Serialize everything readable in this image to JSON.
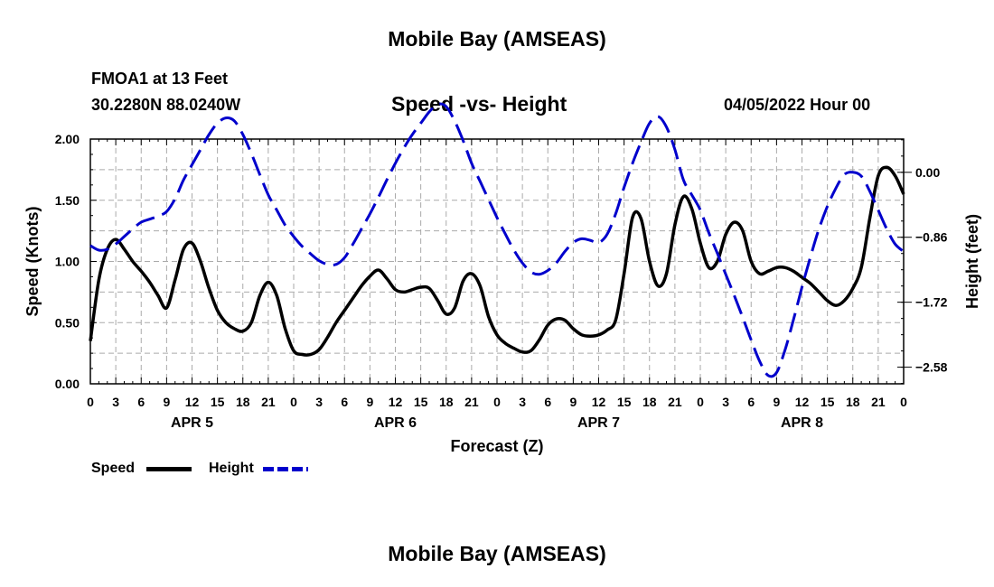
{
  "header": {
    "title": "Mobile Bay (AMSEAS)",
    "station": "FMOA1 at 13 Feet",
    "coords": "30.2280N  88.0240W",
    "subtitle": "Speed -vs- Height",
    "datetime": "04/05/2022 Hour 00"
  },
  "footer": {
    "title": "Mobile Bay (AMSEAS)"
  },
  "legend": {
    "speed_label": "Speed",
    "height_label": "Height",
    "speed_color": "#000000",
    "height_color": "#0000cc"
  },
  "chart_data": {
    "type": "line",
    "xlabel": "Forecast (Z)",
    "ylabel_left": "Speed (Knots)",
    "ylabel_right": "Height (feet)",
    "x_range_hours": [
      0,
      96
    ],
    "x_tick_hours": [
      0,
      3,
      6,
      9,
      12,
      15,
      18,
      21,
      24,
      27,
      30,
      33,
      36,
      39,
      42,
      45,
      48,
      51,
      54,
      57,
      60,
      63,
      66,
      69,
      72,
      75,
      78,
      81,
      84,
      87,
      90,
      93,
      96
    ],
    "x_tick_labels": [
      "0",
      "3",
      "6",
      "9",
      "12",
      "15",
      "18",
      "21",
      "0",
      "3",
      "6",
      "9",
      "12",
      "15",
      "18",
      "21",
      "0",
      "3",
      "6",
      "9",
      "12",
      "15",
      "18",
      "21",
      "0",
      "3",
      "6",
      "9",
      "12",
      "15",
      "18",
      "21",
      "0"
    ],
    "day_labels": [
      {
        "label": "APR 5",
        "hour": 12
      },
      {
        "label": "APR 6",
        "hour": 36
      },
      {
        "label": "APR 7",
        "hour": 60
      },
      {
        "label": "APR 8",
        "hour": 84
      }
    ],
    "left_axis": {
      "range": [
        0,
        2.0
      ],
      "ticks": [
        "0.00",
        "0.50",
        "1.00",
        "1.50",
        "2.00"
      ]
    },
    "right_axis": {
      "range": [
        -2.8,
        0.44
      ],
      "tick_values": [
        0.0,
        -0.86,
        -1.72,
        -2.58
      ],
      "ticks": [
        "0.00",
        "−0.86",
        "−1.72",
        "−2.58"
      ]
    },
    "series": [
      {
        "name": "Speed",
        "axis": "left",
        "color": "#000000",
        "dash": "solid",
        "points": [
          [
            0,
            0.35
          ],
          [
            1,
            0.85
          ],
          [
            2,
            1.1
          ],
          [
            3,
            1.18
          ],
          [
            4,
            1.1
          ],
          [
            5,
            1.0
          ],
          [
            6,
            0.92
          ],
          [
            7,
            0.83
          ],
          [
            8,
            0.72
          ],
          [
            9,
            0.62
          ],
          [
            10,
            0.85
          ],
          [
            11,
            1.1
          ],
          [
            12,
            1.15
          ],
          [
            13,
            1.0
          ],
          [
            14,
            0.78
          ],
          [
            15,
            0.6
          ],
          [
            16,
            0.5
          ],
          [
            17,
            0.45
          ],
          [
            18,
            0.43
          ],
          [
            19,
            0.5
          ],
          [
            20,
            0.72
          ],
          [
            21,
            0.83
          ],
          [
            22,
            0.72
          ],
          [
            23,
            0.45
          ],
          [
            24,
            0.27
          ],
          [
            25,
            0.24
          ],
          [
            26,
            0.24
          ],
          [
            27,
            0.28
          ],
          [
            28,
            0.38
          ],
          [
            29,
            0.5
          ],
          [
            30,
            0.6
          ],
          [
            31,
            0.7
          ],
          [
            32,
            0.8
          ],
          [
            33,
            0.88
          ],
          [
            34,
            0.93
          ],
          [
            35,
            0.86
          ],
          [
            36,
            0.77
          ],
          [
            37,
            0.75
          ],
          [
            38,
            0.77
          ],
          [
            39,
            0.79
          ],
          [
            40,
            0.78
          ],
          [
            41,
            0.68
          ],
          [
            42,
            0.57
          ],
          [
            43,
            0.62
          ],
          [
            44,
            0.84
          ],
          [
            45,
            0.9
          ],
          [
            46,
            0.8
          ],
          [
            47,
            0.55
          ],
          [
            48,
            0.4
          ],
          [
            49,
            0.33
          ],
          [
            50,
            0.29
          ],
          [
            51,
            0.26
          ],
          [
            52,
            0.27
          ],
          [
            53,
            0.36
          ],
          [
            54,
            0.48
          ],
          [
            55,
            0.53
          ],
          [
            56,
            0.52
          ],
          [
            57,
            0.45
          ],
          [
            58,
            0.4
          ],
          [
            59,
            0.39
          ],
          [
            60,
            0.4
          ],
          [
            61,
            0.44
          ],
          [
            62,
            0.52
          ],
          [
            63,
            0.9
          ],
          [
            64,
            1.36
          ],
          [
            65,
            1.35
          ],
          [
            66,
            1.0
          ],
          [
            67,
            0.8
          ],
          [
            68,
            0.9
          ],
          [
            69,
            1.3
          ],
          [
            70,
            1.53
          ],
          [
            71,
            1.43
          ],
          [
            72,
            1.15
          ],
          [
            73,
            0.95
          ],
          [
            74,
            1.0
          ],
          [
            75,
            1.22
          ],
          [
            76,
            1.32
          ],
          [
            77,
            1.25
          ],
          [
            78,
            1.0
          ],
          [
            79,
            0.9
          ],
          [
            80,
            0.92
          ],
          [
            81,
            0.95
          ],
          [
            82,
            0.95
          ],
          [
            83,
            0.92
          ],
          [
            84,
            0.87
          ],
          [
            85,
            0.82
          ],
          [
            86,
            0.75
          ],
          [
            87,
            0.68
          ],
          [
            88,
            0.64
          ],
          [
            89,
            0.68
          ],
          [
            90,
            0.78
          ],
          [
            91,
            0.95
          ],
          [
            92,
            1.35
          ],
          [
            93,
            1.7
          ],
          [
            94,
            1.77
          ],
          [
            95,
            1.7
          ],
          [
            96,
            1.55
          ]
        ]
      },
      {
        "name": "Height",
        "axis": "right",
        "color": "#0000cc",
        "dash": "dashed",
        "points": [
          [
            0,
            -0.97
          ],
          [
            1,
            -1.03
          ],
          [
            2,
            -1.02
          ],
          [
            3,
            -0.95
          ],
          [
            4,
            -0.85
          ],
          [
            5,
            -0.75
          ],
          [
            6,
            -0.66
          ],
          [
            7,
            -0.62
          ],
          [
            8,
            -0.58
          ],
          [
            9,
            -0.52
          ],
          [
            10,
            -0.35
          ],
          [
            11,
            -0.1
          ],
          [
            12,
            0.1
          ],
          [
            13,
            0.3
          ],
          [
            14,
            0.5
          ],
          [
            15,
            0.65
          ],
          [
            16,
            0.72
          ],
          [
            17,
            0.68
          ],
          [
            18,
            0.5
          ],
          [
            19,
            0.25
          ],
          [
            20,
            -0.03
          ],
          [
            21,
            -0.3
          ],
          [
            22,
            -0.5
          ],
          [
            23,
            -0.7
          ],
          [
            24,
            -0.85
          ],
          [
            25,
            -0.98
          ],
          [
            26,
            -1.08
          ],
          [
            27,
            -1.17
          ],
          [
            28,
            -1.22
          ],
          [
            29,
            -1.22
          ],
          [
            30,
            -1.13
          ],
          [
            31,
            -0.95
          ],
          [
            32,
            -0.75
          ],
          [
            33,
            -0.55
          ],
          [
            34,
            -0.33
          ],
          [
            35,
            -0.1
          ],
          [
            36,
            0.12
          ],
          [
            37,
            0.32
          ],
          [
            38,
            0.5
          ],
          [
            39,
            0.65
          ],
          [
            40,
            0.8
          ],
          [
            41,
            0.9
          ],
          [
            42,
            0.87
          ],
          [
            43,
            0.68
          ],
          [
            44,
            0.42
          ],
          [
            45,
            0.12
          ],
          [
            46,
            -0.12
          ],
          [
            47,
            -0.36
          ],
          [
            48,
            -0.6
          ],
          [
            49,
            -0.82
          ],
          [
            50,
            -1.03
          ],
          [
            51,
            -1.2
          ],
          [
            52,
            -1.32
          ],
          [
            53,
            -1.35
          ],
          [
            54,
            -1.3
          ],
          [
            55,
            -1.2
          ],
          [
            56,
            -1.05
          ],
          [
            57,
            -0.93
          ],
          [
            58,
            -0.88
          ],
          [
            59,
            -0.9
          ],
          [
            60,
            -0.93
          ],
          [
            61,
            -0.82
          ],
          [
            62,
            -0.55
          ],
          [
            63,
            -0.2
          ],
          [
            64,
            0.12
          ],
          [
            65,
            0.4
          ],
          [
            66,
            0.65
          ],
          [
            67,
            0.74
          ],
          [
            68,
            0.6
          ],
          [
            69,
            0.3
          ],
          [
            70,
            -0.1
          ],
          [
            71,
            -0.3
          ],
          [
            72,
            -0.5
          ],
          [
            73,
            -0.8
          ],
          [
            74,
            -1.07
          ],
          [
            75,
            -1.35
          ],
          [
            76,
            -1.63
          ],
          [
            77,
            -1.92
          ],
          [
            78,
            -2.22
          ],
          [
            79,
            -2.5
          ],
          [
            80,
            -2.69
          ],
          [
            81,
            -2.65
          ],
          [
            82,
            -2.35
          ],
          [
            83,
            -1.95
          ],
          [
            84,
            -1.52
          ],
          [
            85,
            -1.12
          ],
          [
            86,
            -0.75
          ],
          [
            87,
            -0.45
          ],
          [
            88,
            -0.21
          ],
          [
            89,
            -0.03
          ],
          [
            90,
            0.0
          ],
          [
            91,
            -0.05
          ],
          [
            92,
            -0.25
          ],
          [
            93,
            -0.5
          ],
          [
            94,
            -0.75
          ],
          [
            95,
            -0.95
          ],
          [
            96,
            -1.05
          ]
        ]
      }
    ]
  }
}
